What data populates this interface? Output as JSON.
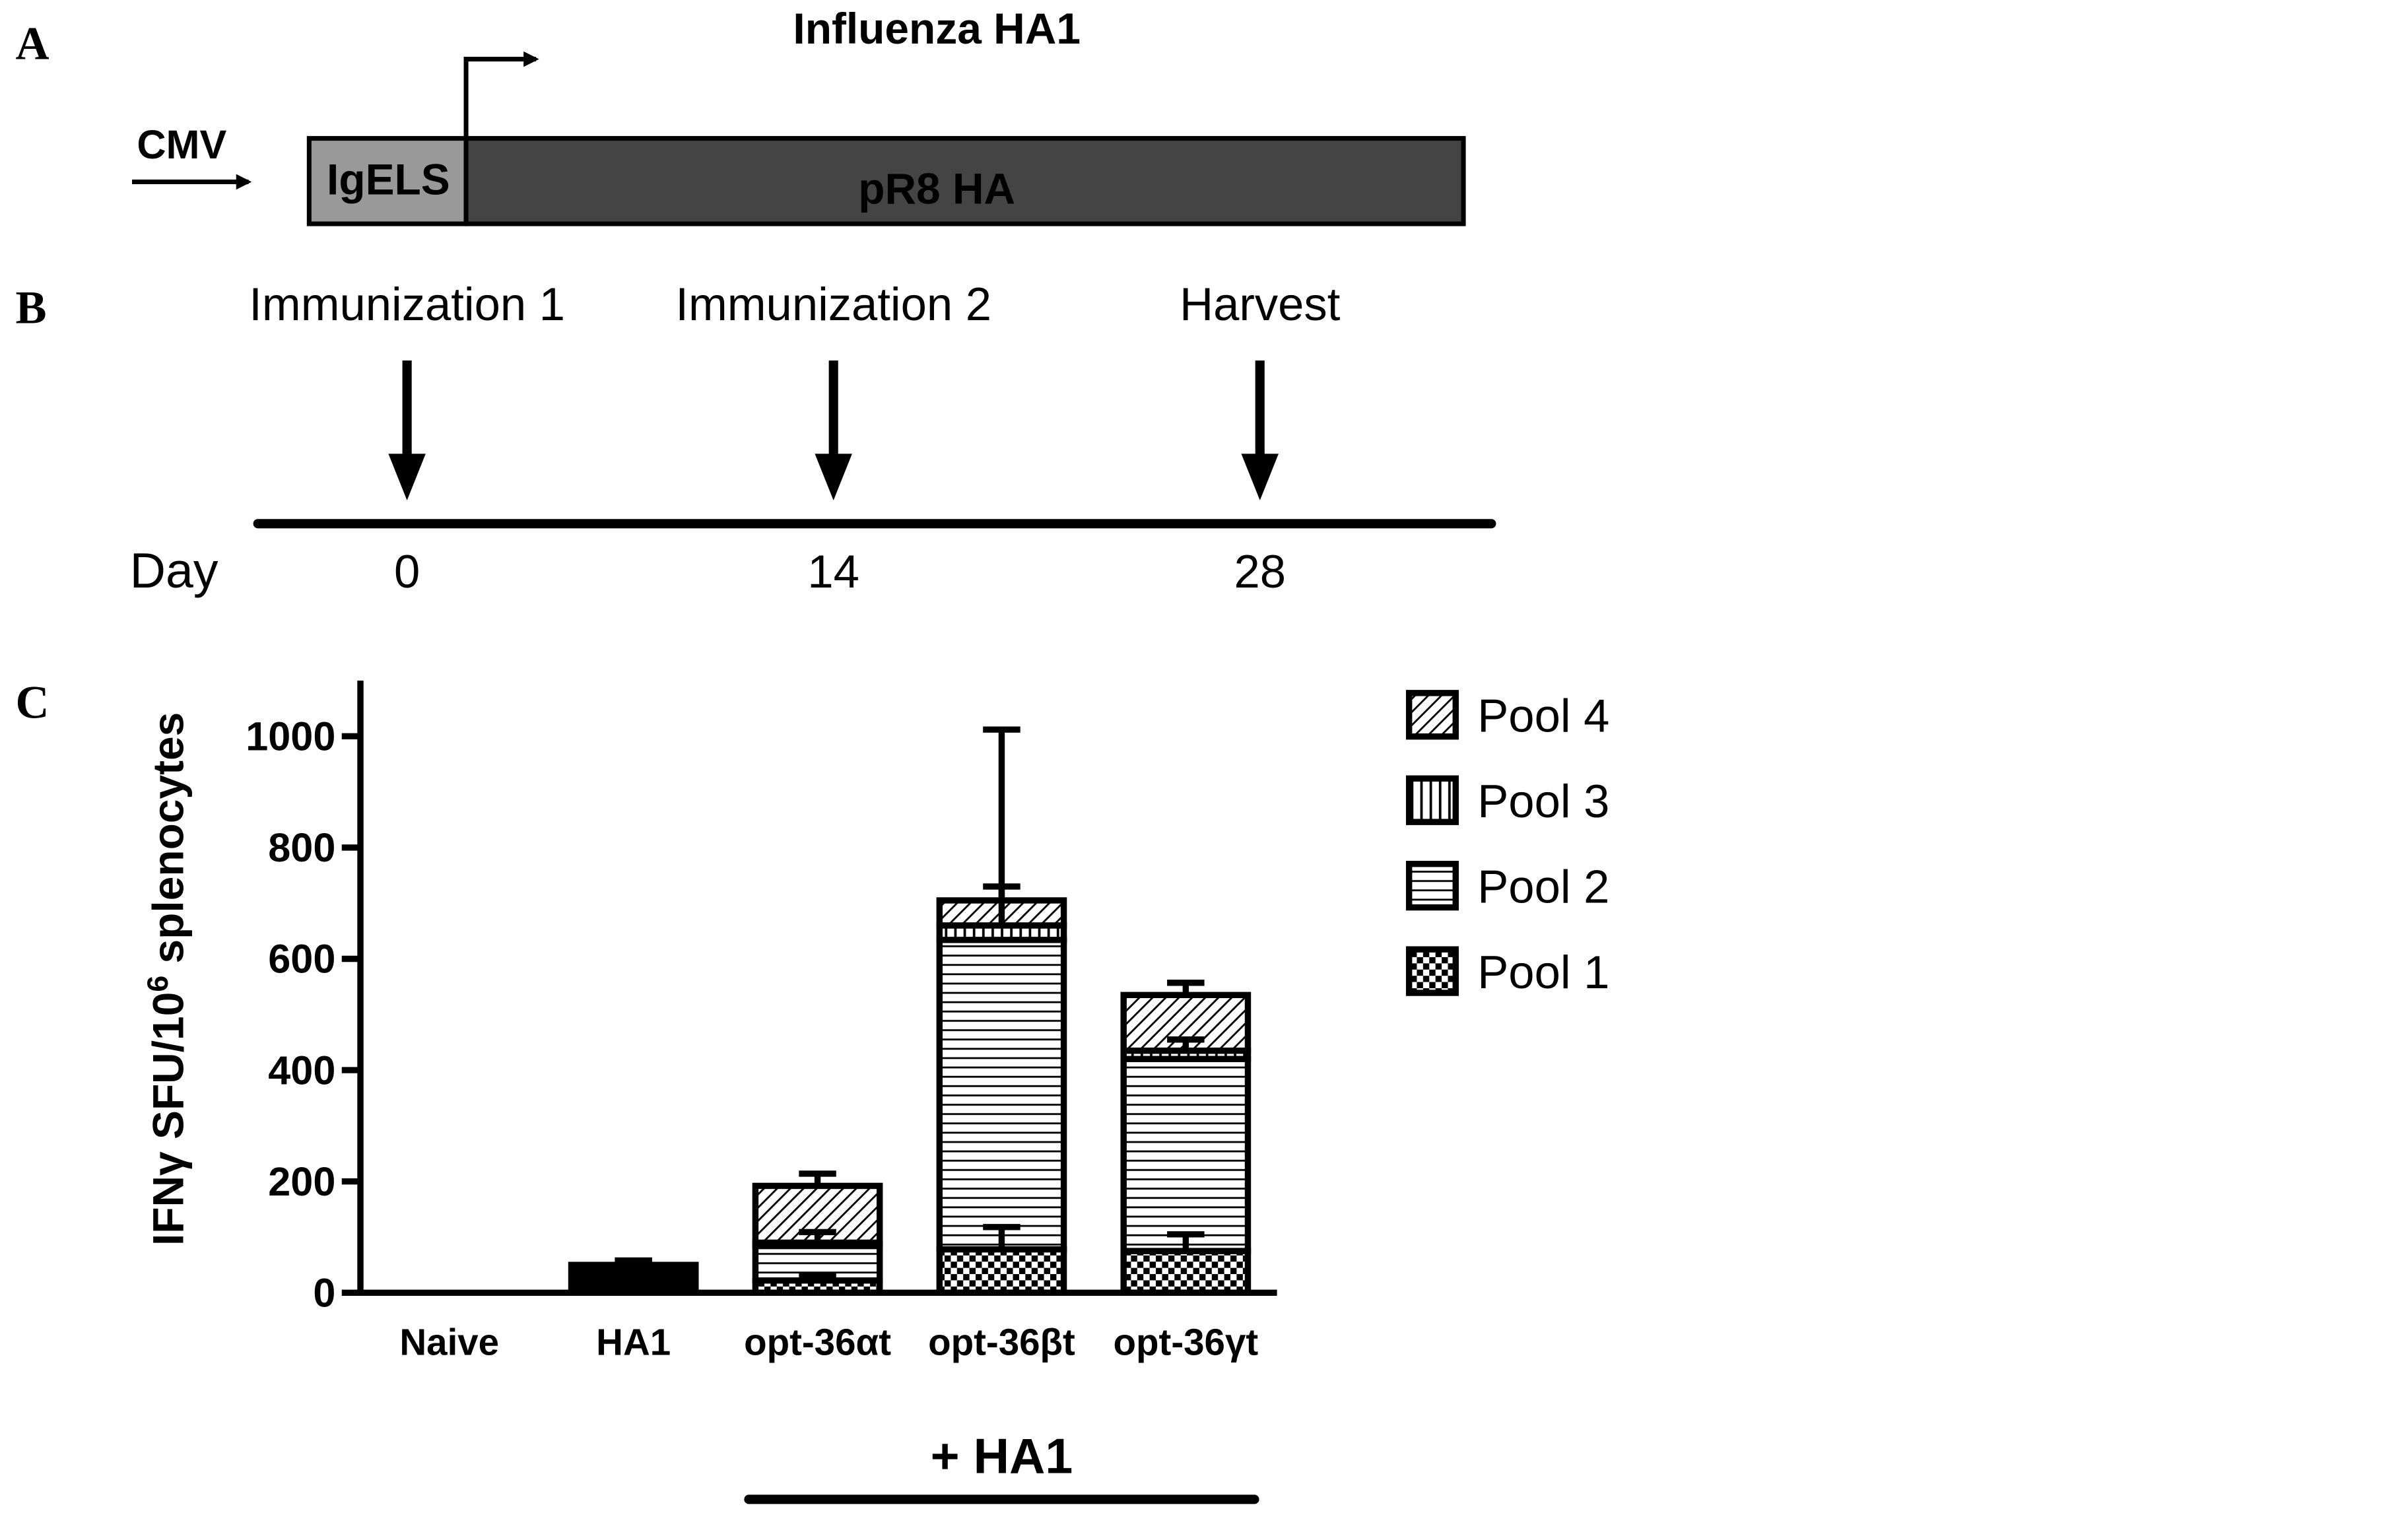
{
  "panel_labels": [
    "A",
    "B",
    "C"
  ],
  "construct": {
    "title": "Influenza HA1",
    "promoter": "CMV",
    "segments": [
      "IgELS",
      "pR8 HA"
    ]
  },
  "timeline": {
    "events": [
      "Immunization 1",
      "Immunization 2",
      "Harvest"
    ],
    "axis_label": "Day",
    "days": [
      0,
      14,
      28
    ]
  },
  "chart_data": {
    "type": "bar",
    "stacked": true,
    "ylabel": [
      "IFNγ SFU/10",
      "6",
      " splenocytes"
    ],
    "categories": [
      "Naive",
      "HA1",
      "opt-36αt",
      "opt-36βt",
      "opt-36γt"
    ],
    "category_colors": [
      null,
      "#000000",
      null,
      null,
      null
    ],
    "series": [
      {
        "name": "Pool 1",
        "pattern": "checker",
        "color": "#000000",
        "values": [
          0,
          50,
          22,
          78,
          75
        ],
        "errors": [
          0,
          8,
          8,
          40,
          30
        ]
      },
      {
        "name": "Pool 2",
        "pattern": "horizontal",
        "color": "#000000",
        "values": [
          0,
          0,
          62,
          556,
          345
        ],
        "errors": [
          0,
          0,
          25,
          0,
          0
        ]
      },
      {
        "name": "Pool 3",
        "pattern": "vertical",
        "color": "#000000",
        "values": [
          0,
          0,
          6,
          26,
          15
        ],
        "errors": [
          0,
          0,
          0,
          70,
          20
        ]
      },
      {
        "name": "Pool 4",
        "pattern": "diagonal",
        "color": "#000000",
        "values": [
          0,
          0,
          102,
          45,
          100
        ],
        "errors": [
          0,
          0,
          22,
          307,
          22
        ]
      }
    ],
    "ylim": [
      0,
      1100
    ],
    "yticks": [
      0,
      200,
      400,
      600,
      800,
      1000
    ],
    "group_label": "+ HA1",
    "group_categories": [
      2,
      4
    ],
    "legend": "top-right"
  }
}
